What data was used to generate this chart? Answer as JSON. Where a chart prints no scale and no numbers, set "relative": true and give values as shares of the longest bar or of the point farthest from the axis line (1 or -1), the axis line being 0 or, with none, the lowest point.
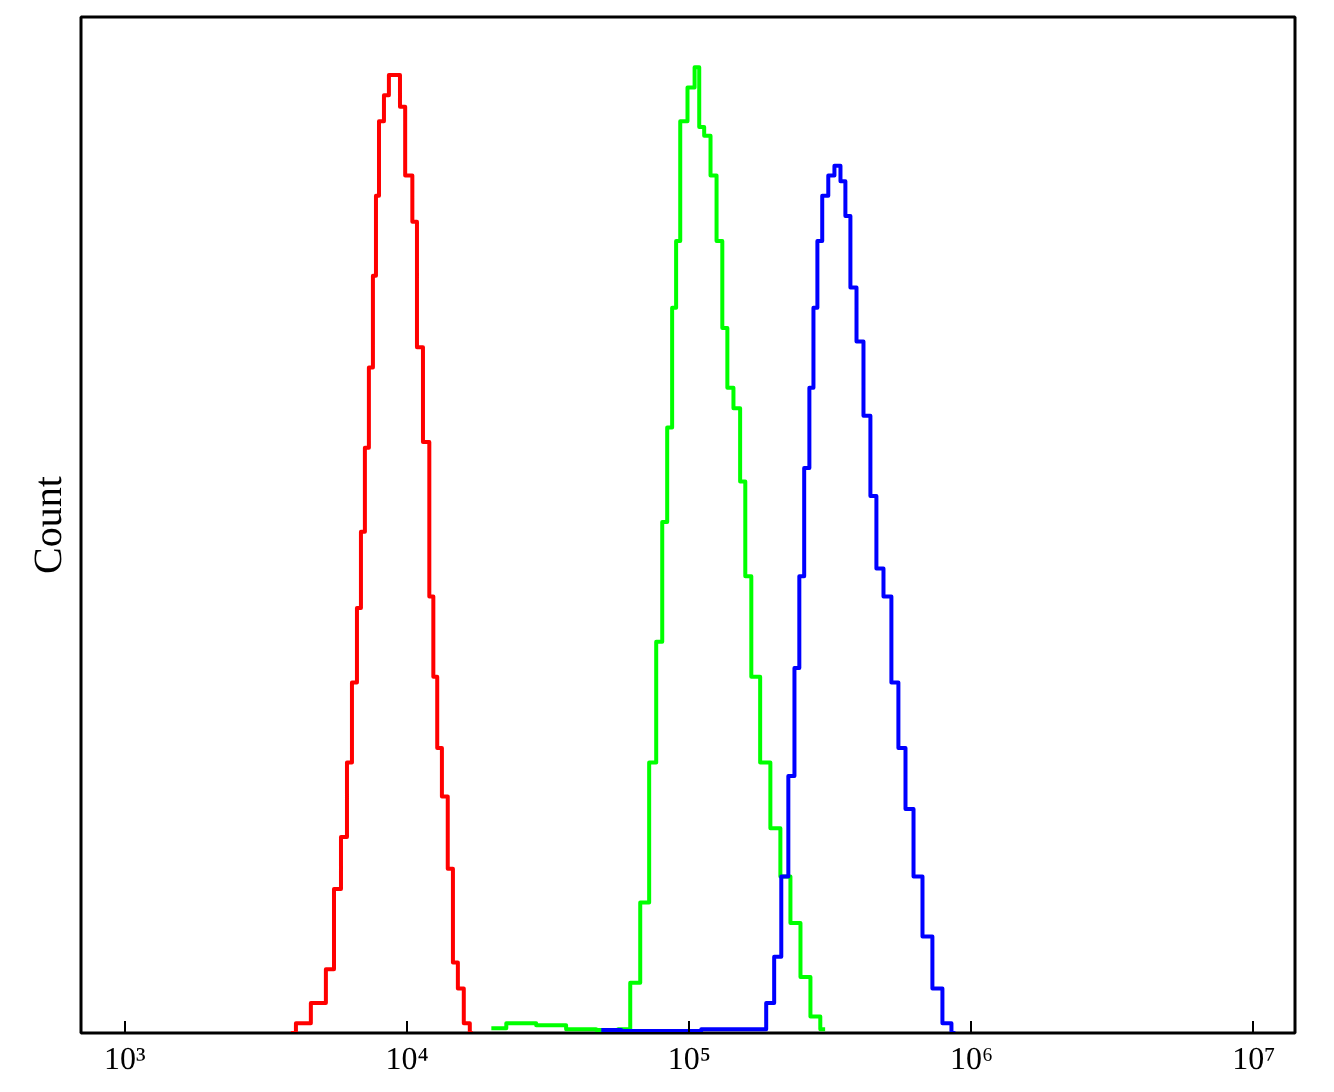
{
  "chart_data": {
    "type": "step",
    "ylabel": "Count",
    "relative": true,
    "log": "x",
    "grid": false,
    "tick_labels": "x",
    "xlim": [
      700,
      14000000
    ],
    "xticks": [
      {
        "value": 1000,
        "label": "10³"
      },
      {
        "value": 10000,
        "label": "10⁴"
      },
      {
        "value": 100000,
        "label": "10⁵"
      },
      {
        "value": 1000000,
        "label": "10⁶"
      },
      {
        "value": 10000000,
        "label": "10⁷"
      }
    ],
    "series": [
      {
        "color": "#ff0000",
        "x": [
          3880,
          4210,
          4950,
          5380,
          5650,
          6030,
          6230,
          6540,
          6760,
          6980,
          7210,
          7450,
          7700,
          7830,
          8090,
          8490,
          8770,
          9370,
          9520,
          10200,
          10700,
          11000,
          11800,
          12200,
          12600,
          13000,
          13600,
          14300,
          14800,
          15500,
          16300,
          17100
        ],
        "values": [
          0,
          0.01,
          0.031,
          0.066,
          0.149,
          0.203,
          0.28,
          0.363,
          0.44,
          0.519,
          0.606,
          0.689,
          0.784,
          0.867,
          0.944,
          0.971,
          0.992,
          0.992,
          0.959,
          0.888,
          0.84,
          0.71,
          0.612,
          0.452,
          0.369,
          0.295,
          0.245,
          0.17,
          0.073,
          0.046,
          0.01,
          0
        ]
      },
      {
        "color": "#00ff00",
        "x": [
          19900,
          25400,
          32400,
          41400,
          52900,
          59300,
          64400,
          69800,
          74500,
          78300,
          82200,
          84900,
          89100,
          90600,
          95300,
          102000,
          107000,
          110000,
          116000,
          122000,
          128000,
          134000,
          139000,
          148000,
          155000,
          161000,
          171000,
          186000,
          202000,
          219000,
          238000,
          258000,
          280000,
          303000
        ],
        "values": [
          0.005,
          0.01,
          0.008,
          0.004,
          0.003,
          0.004,
          0.052,
          0.135,
          0.28,
          0.405,
          0.529,
          0.627,
          0.751,
          0.82,
          0.944,
          0.979,
          1,
          0.938,
          0.929,
          0.888,
          0.82,
          0.73,
          0.668,
          0.647,
          0.571,
          0.473,
          0.369,
          0.28,
          0.212,
          0.162,
          0.114,
          0.058,
          0.017,
          0.004
        ]
      },
      {
        "color": "#0000ff",
        "x": [
          48800,
          67600,
          180000,
          195000,
          205000,
          219000,
          230000,
          242000,
          249000,
          262000,
          271000,
          280000,
          289000,
          303000,
          319000,
          335000,
          352000,
          363000,
          382000,
          401000,
          428000,
          449000,
          472000,
          504000,
          537000,
          565000,
          603000,
          644000,
          698000,
          757000,
          822000,
          877000
        ],
        "values": [
          0.003,
          0.002,
          0.004,
          0.031,
          0.079,
          0.162,
          0.266,
          0.378,
          0.473,
          0.585,
          0.668,
          0.751,
          0.82,
          0.867,
          0.888,
          0.898,
          0.882,
          0.846,
          0.772,
          0.716,
          0.639,
          0.556,
          0.481,
          0.452,
          0.363,
          0.295,
          0.232,
          0.162,
          0.1,
          0.046,
          0.01,
          0
        ]
      }
    ]
  }
}
